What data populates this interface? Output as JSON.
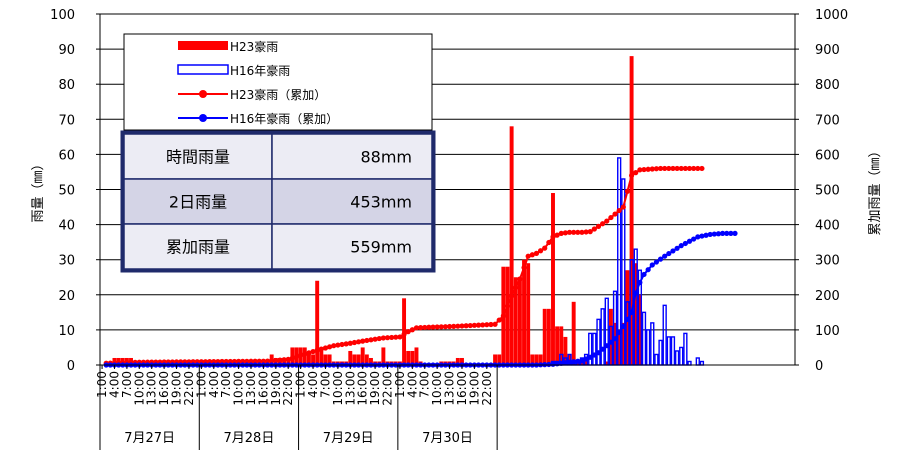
{
  "chart_data": {
    "type": "bar",
    "left_axis": {
      "label": "雨量（㎜）",
      "range": [
        0,
        100
      ],
      "ticks": [
        "0",
        "10",
        "20",
        "30",
        "40",
        "50",
        "60",
        "70",
        "80",
        "90",
        "100"
      ]
    },
    "right_axis": {
      "label": "累加雨量（㎜）",
      "range": [
        0,
        1000
      ],
      "ticks": [
        "0",
        "100",
        "200",
        "300",
        "400",
        "500",
        "600",
        "700",
        "800",
        "900",
        "1000"
      ]
    },
    "hour_ticks": [
      "1:00",
      "4:00",
      "7:00",
      "10:00",
      "13:00",
      "16:00",
      "19:00",
      "22:00"
    ],
    "days": [
      "7月27日",
      "7月28日",
      "7月29日",
      "7月30日"
    ],
    "grid": true,
    "legend": {
      "position": "top-left",
      "entries": [
        {
          "name": "H23豪雨",
          "style": "bar-filled",
          "color": "#ff0000"
        },
        {
          "name": "H16年豪雨",
          "style": "bar-outline",
          "color": "#0000ff"
        },
        {
          "name": "H23豪雨（累加）",
          "style": "line-marker",
          "color": "#ff0000"
        },
        {
          "name": "H16年豪雨（累加）",
          "style": "line-marker",
          "color": "#0000ff"
        }
      ]
    },
    "summary_table": [
      {
        "label": "時間雨量",
        "value": "88mm"
      },
      {
        "label": "2日雨量",
        "value": "453mm"
      },
      {
        "label": "累加雨量",
        "value": "559mm"
      }
    ],
    "series": [
      {
        "name": "H23豪雨",
        "axis": "left",
        "points": [
          [
            1,
            0
          ],
          [
            2,
            0
          ],
          [
            3,
            2
          ],
          [
            4,
            2
          ],
          [
            5,
            2
          ],
          [
            6,
            2
          ],
          [
            7,
            2
          ],
          [
            8,
            1
          ],
          [
            9,
            1
          ],
          [
            10,
            1
          ],
          [
            11,
            1
          ],
          [
            12,
            1
          ],
          [
            13,
            1
          ],
          [
            14,
            1
          ],
          [
            15,
            1
          ],
          [
            16,
            1
          ],
          [
            17,
            1
          ],
          [
            18,
            1
          ],
          [
            19,
            1
          ],
          [
            20,
            1
          ],
          [
            21,
            1
          ],
          [
            22,
            1
          ],
          [
            23,
            1
          ],
          [
            24,
            1
          ],
          [
            25,
            1
          ],
          [
            26,
            1
          ],
          [
            27,
            1
          ],
          [
            28,
            1
          ],
          [
            29,
            1
          ],
          [
            30,
            1
          ],
          [
            31,
            1
          ],
          [
            32,
            1
          ],
          [
            33,
            1
          ],
          [
            34,
            1
          ],
          [
            35,
            1
          ],
          [
            36,
            1
          ],
          [
            37,
            1
          ],
          [
            38,
            1
          ],
          [
            39,
            1
          ],
          [
            40,
            1
          ],
          [
            41,
            3
          ],
          [
            42,
            2
          ],
          [
            43,
            2
          ],
          [
            44,
            1
          ],
          [
            45,
            1
          ],
          [
            46,
            5
          ],
          [
            47,
            5
          ],
          [
            48,
            5
          ],
          [
            49,
            5
          ],
          [
            50,
            3
          ],
          [
            51,
            3
          ],
          [
            52,
            24
          ],
          [
            53,
            4
          ],
          [
            54,
            3
          ],
          [
            55,
            3
          ],
          [
            56,
            1
          ],
          [
            57,
            1
          ],
          [
            58,
            1
          ],
          [
            59,
            1
          ],
          [
            60,
            4
          ],
          [
            61,
            3
          ],
          [
            62,
            3
          ],
          [
            63,
            5
          ],
          [
            64,
            3
          ],
          [
            65,
            2
          ],
          [
            66,
            1
          ],
          [
            67,
            1
          ],
          [
            68,
            5
          ],
          [
            69,
            1
          ],
          [
            70,
            1
          ],
          [
            71,
            1
          ],
          [
            72,
            1
          ],
          [
            73,
            19
          ],
          [
            74,
            4
          ],
          [
            75,
            4
          ],
          [
            76,
            5
          ],
          [
            77,
            1
          ],
          [
            82,
            1
          ],
          [
            83,
            1
          ],
          [
            84,
            1
          ],
          [
            85,
            1
          ],
          [
            86,
            2
          ],
          [
            87,
            2
          ],
          [
            95,
            3
          ],
          [
            96,
            3
          ],
          [
            97,
            28
          ],
          [
            98,
            28
          ],
          [
            99,
            68
          ],
          [
            100,
            25
          ],
          [
            101,
            25
          ],
          [
            102,
            30
          ],
          [
            103,
            29
          ],
          [
            104,
            3
          ],
          [
            105,
            3
          ],
          [
            106,
            3
          ],
          [
            107,
            16
          ],
          [
            108,
            16
          ],
          [
            109,
            49
          ],
          [
            110,
            11
          ],
          [
            111,
            11
          ],
          [
            112,
            8
          ],
          [
            113,
            3
          ],
          [
            114,
            18
          ],
          [
            115,
            1
          ],
          [
            116,
            1
          ],
          [
            117,
            1
          ],
          [
            122,
            1
          ],
          [
            123,
            16
          ],
          [
            124,
            12
          ],
          [
            125,
            10
          ],
          [
            126,
            12
          ],
          [
            127,
            27
          ],
          [
            128,
            88
          ],
          [
            129,
            29
          ],
          [
            130,
            20
          ]
        ]
      },
      {
        "name": "H16年豪雨",
        "axis": "left",
        "points": [
          [
            109,
            1
          ],
          [
            110,
            1
          ],
          [
            111,
            3
          ],
          [
            112,
            2
          ],
          [
            113,
            3
          ],
          [
            114,
            1
          ],
          [
            115,
            1
          ],
          [
            116,
            2
          ],
          [
            117,
            3
          ],
          [
            118,
            9
          ],
          [
            119,
            9
          ],
          [
            120,
            13
          ],
          [
            121,
            16
          ],
          [
            122,
            19
          ],
          [
            123,
            11
          ],
          [
            124,
            21
          ],
          [
            125,
            59
          ],
          [
            126,
            53
          ],
          [
            127,
            18
          ],
          [
            128,
            30
          ],
          [
            129,
            33
          ],
          [
            130,
            27
          ],
          [
            131,
            15
          ],
          [
            132,
            10
          ],
          [
            133,
            12
          ],
          [
            134,
            3
          ],
          [
            135,
            7
          ],
          [
            136,
            17
          ],
          [
            137,
            8
          ],
          [
            138,
            8
          ],
          [
            139,
            4
          ],
          [
            140,
            5
          ],
          [
            141,
            9
          ],
          [
            142,
            1
          ],
          [
            144,
            2
          ],
          [
            145,
            1
          ]
        ]
      },
      {
        "name": "H23豪雨（累加）",
        "axis": "right",
        "points": [
          [
            1,
            5
          ],
          [
            5,
            7
          ],
          [
            10,
            8
          ],
          [
            20,
            9
          ],
          [
            30,
            10
          ],
          [
            40,
            11
          ],
          [
            45,
            16
          ],
          [
            52,
            42
          ],
          [
            56,
            55
          ],
          [
            60,
            62
          ],
          [
            64,
            70
          ],
          [
            68,
            77
          ],
          [
            72,
            80
          ],
          [
            74,
            95
          ],
          [
            76,
            106
          ],
          [
            80,
            108
          ],
          [
            85,
            110
          ],
          [
            90,
            113
          ],
          [
            95,
            116
          ],
          [
            97,
            140
          ],
          [
            99,
            196
          ],
          [
            101,
            245
          ],
          [
            103,
            310
          ],
          [
            105,
            318
          ],
          [
            107,
            333
          ],
          [
            109,
            365
          ],
          [
            111,
            375
          ],
          [
            113,
            378
          ],
          [
            116,
            378
          ],
          [
            118,
            380
          ],
          [
            120,
            395
          ],
          [
            122,
            410
          ],
          [
            124,
            430
          ],
          [
            126,
            450
          ],
          [
            128,
            540
          ],
          [
            130,
            556
          ],
          [
            135,
            560
          ],
          [
            145,
            560
          ]
        ]
      },
      {
        "name": "H16年豪雨（累加）",
        "axis": "right",
        "points": [
          [
            1,
            0
          ],
          [
            105,
            0
          ],
          [
            109,
            2
          ],
          [
            113,
            8
          ],
          [
            116,
            12
          ],
          [
            118,
            22
          ],
          [
            120,
            35
          ],
          [
            122,
            55
          ],
          [
            124,
            75
          ],
          [
            126,
            110
          ],
          [
            128,
            150
          ],
          [
            129,
            205
          ],
          [
            130,
            235
          ],
          [
            131,
            258
          ],
          [
            133,
            285
          ],
          [
            136,
            310
          ],
          [
            140,
            340
          ],
          [
            144,
            365
          ],
          [
            147,
            372
          ],
          [
            150,
            375
          ],
          [
            153,
            375
          ]
        ]
      }
    ]
  }
}
